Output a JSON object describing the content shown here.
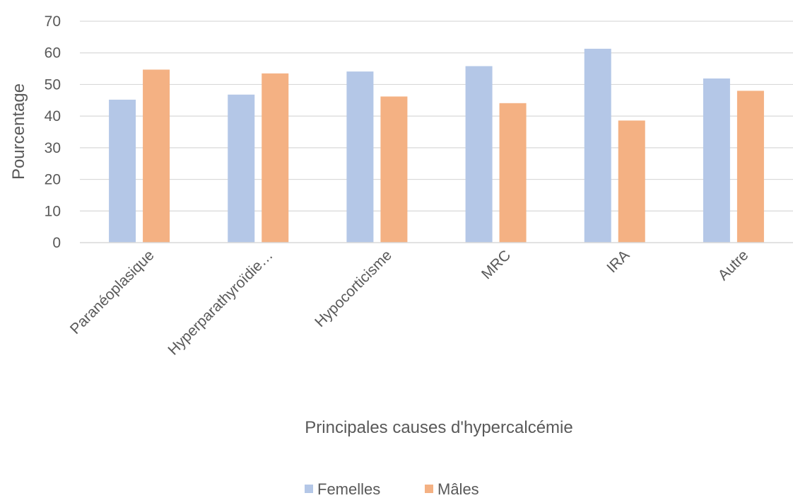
{
  "chart_data": {
    "type": "bar",
    "title": "",
    "xlabel": "Principales causes d'hypercalcémie",
    "ylabel": "Pourcentage",
    "ylim": [
      0,
      70
    ],
    "yticks": [
      "0",
      "10",
      "20",
      "30",
      "40",
      "50",
      "60",
      "70"
    ],
    "grid": true,
    "legend_position": "bottom",
    "categories": [
      "Paranéoplasique",
      "Hyperparathyroïdie…",
      "Hypocorticisme",
      "MRC",
      "IRA",
      "Autre"
    ],
    "series": [
      {
        "name": "Femelles",
        "color": "#b4c7e7",
        "values": [
          45.2,
          46.8,
          54.1,
          55.8,
          61.3,
          51.9
        ]
      },
      {
        "name": "Mâles",
        "color": "#f4b183",
        "values": [
          54.7,
          53.5,
          46.2,
          44.1,
          38.6,
          48.0
        ]
      }
    ]
  }
}
